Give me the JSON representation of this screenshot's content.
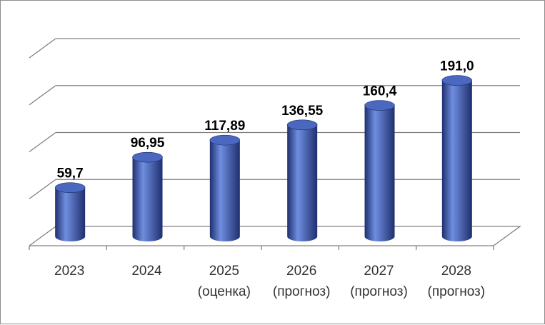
{
  "chart_data": {
    "type": "bar",
    "style": "3d-cylinder",
    "title": "",
    "xlabel": "",
    "ylabel": "",
    "categories": [
      [
        "2023"
      ],
      [
        "2024"
      ],
      [
        "2025",
        "(оценка)"
      ],
      [
        "2026",
        "(прогноз)"
      ],
      [
        "2027",
        "(прогноз)"
      ],
      [
        "2028",
        "(прогноз)"
      ]
    ],
    "values": [
      59.7,
      96.95,
      117.89,
      136.55,
      160.4,
      191.0
    ],
    "value_labels": [
      "59,7",
      "96,95",
      "117,89",
      "136,55",
      "160,4",
      "191,0"
    ],
    "ylim": [
      0,
      230
    ],
    "y_tick_labels_shown": false,
    "grid": true,
    "legend": "none",
    "colors": {
      "bar": "#3f5eb3",
      "bar_dark": "#1f2f6e",
      "bar_light": "#6f8ee0",
      "top": "#4a68c0",
      "grid": "#808080"
    }
  }
}
